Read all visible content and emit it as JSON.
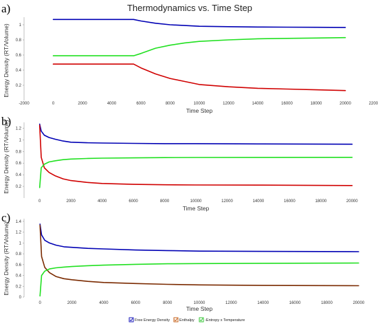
{
  "chart_data": [
    {
      "type": "line",
      "panel": "a)",
      "title": "Thermodynamics vs. Time Step",
      "xlabel": "Time Step",
      "ylabel": "Energy Density (RT/Volume)",
      "xlim": [
        -2000,
        22000
      ],
      "ylim": [
        0,
        1.1
      ],
      "x_ticks": [
        -2000,
        0,
        2000,
        4000,
        6000,
        8000,
        10000,
        12000,
        14000,
        16000,
        18000,
        20000,
        22000
      ],
      "x_tick_labels": [
        "-2000",
        "0",
        "2000",
        "4000",
        "6000",
        "8000",
        "10000",
        "12000",
        "14000",
        "16000",
        "18000",
        "20000",
        "22000"
      ],
      "y_ticks": [
        0.2,
        0.4,
        0.6,
        0.8,
        1
      ],
      "y_tick_labels": [
        "0.2",
        "0.4",
        "0.6",
        "0.8",
        "1"
      ],
      "grid": false,
      "series": [
        {
          "color": "#0000b4",
          "x": [
            0,
            2000,
            4000,
            5500,
            6000,
            7000,
            8000,
            9000,
            10000,
            12000,
            14000,
            16000,
            18000,
            20000
          ],
          "y": [
            1.07,
            1.07,
            1.07,
            1.07,
            1.05,
            1.02,
            1.0,
            0.99,
            0.98,
            0.975,
            0.97,
            0.968,
            0.966,
            0.965
          ]
        },
        {
          "color": "#d00000",
          "x": [
            0,
            2000,
            4000,
            5500,
            6000,
            7000,
            8000,
            9000,
            10000,
            12000,
            14000,
            16000,
            18000,
            20000
          ],
          "y": [
            0.48,
            0.48,
            0.48,
            0.48,
            0.43,
            0.35,
            0.29,
            0.25,
            0.21,
            0.18,
            0.16,
            0.15,
            0.14,
            0.13
          ]
        },
        {
          "color": "#20e020",
          "x": [
            0,
            2000,
            4000,
            5500,
            6000,
            7000,
            8000,
            9000,
            10000,
            12000,
            14000,
            16000,
            18000,
            20000
          ],
          "y": [
            0.59,
            0.59,
            0.59,
            0.59,
            0.62,
            0.69,
            0.73,
            0.76,
            0.78,
            0.8,
            0.815,
            0.82,
            0.825,
            0.83
          ]
        }
      ]
    },
    {
      "type": "line",
      "panel": "b)",
      "xlabel": "Time Step",
      "ylabel": "Energy Density (RT/Volume)",
      "xlim": [
        -1000,
        21000
      ],
      "ylim": [
        0,
        1.3
      ],
      "x_ticks": [
        0,
        2000,
        4000,
        6000,
        8000,
        10000,
        12000,
        14000,
        16000,
        18000,
        20000
      ],
      "x_tick_labels": [
        "0",
        "2000",
        "4000",
        "6000",
        "8000",
        "10000",
        "12000",
        "14000",
        "16000",
        "18000",
        "20000"
      ],
      "y_ticks": [
        0.2,
        0.4,
        0.6,
        0.8,
        1,
        1.2
      ],
      "y_tick_labels": [
        "0.2",
        "0.4",
        "0.6",
        "0.8",
        "1",
        "1.2"
      ],
      "grid": false,
      "series": [
        {
          "color": "#0000b4",
          "x": [
            0,
            100,
            300,
            600,
            1000,
            1500,
            2000,
            3000,
            4000,
            6000,
            8000,
            10000,
            14000,
            20000
          ],
          "y": [
            1.27,
            1.15,
            1.08,
            1.04,
            1.01,
            0.98,
            0.96,
            0.95,
            0.945,
            0.94,
            0.935,
            0.935,
            0.93,
            0.925
          ]
        },
        {
          "color": "#d00000",
          "x": [
            0,
            100,
            300,
            600,
            1000,
            1500,
            2000,
            3000,
            4000,
            6000,
            8000,
            10000,
            14000,
            20000
          ],
          "y": [
            1.25,
            0.7,
            0.52,
            0.44,
            0.38,
            0.33,
            0.3,
            0.27,
            0.25,
            0.235,
            0.228,
            0.225,
            0.222,
            0.215
          ]
        },
        {
          "color": "#20e020",
          "x": [
            0,
            100,
            300,
            600,
            1000,
            1500,
            2000,
            3000,
            4000,
            6000,
            8000,
            10000,
            14000,
            20000
          ],
          "y": [
            0.18,
            0.52,
            0.58,
            0.62,
            0.64,
            0.66,
            0.67,
            0.68,
            0.685,
            0.69,
            0.695,
            0.697,
            0.698,
            0.7
          ]
        }
      ]
    },
    {
      "type": "line",
      "panel": "c)",
      "xlabel": "Time Step",
      "ylabel": "Energy Density (RT/Volume)",
      "xlim": [
        -1000,
        21000
      ],
      "ylim": [
        0,
        1.45
      ],
      "x_ticks": [
        0,
        2000,
        4000,
        6000,
        8000,
        10000,
        12000,
        14000,
        16000,
        18000,
        20000
      ],
      "x_tick_labels": [
        "0",
        "2000",
        "4000",
        "6000",
        "8000",
        "10000",
        "12000",
        "14000",
        "16000",
        "18000",
        "20000"
      ],
      "y_ticks": [
        0,
        0.2,
        0.4,
        0.6,
        0.8,
        1,
        1.2,
        1.4
      ],
      "y_tick_labels": [
        "0",
        "0.2",
        "0.4",
        "0.6",
        "0.8",
        "1",
        "1.2",
        "1.4"
      ],
      "grid": false,
      "series": [
        {
          "color": "#0000b4",
          "x": [
            0,
            100,
            300,
            600,
            1000,
            1500,
            2000,
            3000,
            4000,
            6000,
            8000,
            10000,
            14000,
            20000
          ],
          "y": [
            1.35,
            1.15,
            1.05,
            1.0,
            0.96,
            0.93,
            0.92,
            0.9,
            0.89,
            0.87,
            0.86,
            0.85,
            0.845,
            0.84
          ]
        },
        {
          "color": "#7a2a00",
          "x": [
            0,
            100,
            300,
            600,
            1000,
            1500,
            2000,
            3000,
            4000,
            6000,
            8000,
            10000,
            14000,
            20000
          ],
          "y": [
            1.33,
            0.75,
            0.55,
            0.45,
            0.38,
            0.34,
            0.32,
            0.29,
            0.27,
            0.25,
            0.235,
            0.225,
            0.215,
            0.21
          ]
        },
        {
          "color": "#20e020",
          "x": [
            0,
            100,
            300,
            600,
            1000,
            1500,
            2000,
            3000,
            4000,
            6000,
            8000,
            10000,
            14000,
            20000
          ],
          "y": [
            0.02,
            0.4,
            0.48,
            0.52,
            0.54,
            0.555,
            0.565,
            0.58,
            0.59,
            0.605,
            0.615,
            0.62,
            0.625,
            0.63
          ]
        }
      ]
    }
  ],
  "legend": {
    "items": [
      {
        "label": "Free Energy Density",
        "color": "#0000b4",
        "checked": true
      },
      {
        "label": "Enthalpy",
        "color": "#c05000",
        "checked": true
      },
      {
        "label": "-Entropy x Temperature",
        "color": "#20c020",
        "checked": true
      }
    ]
  }
}
